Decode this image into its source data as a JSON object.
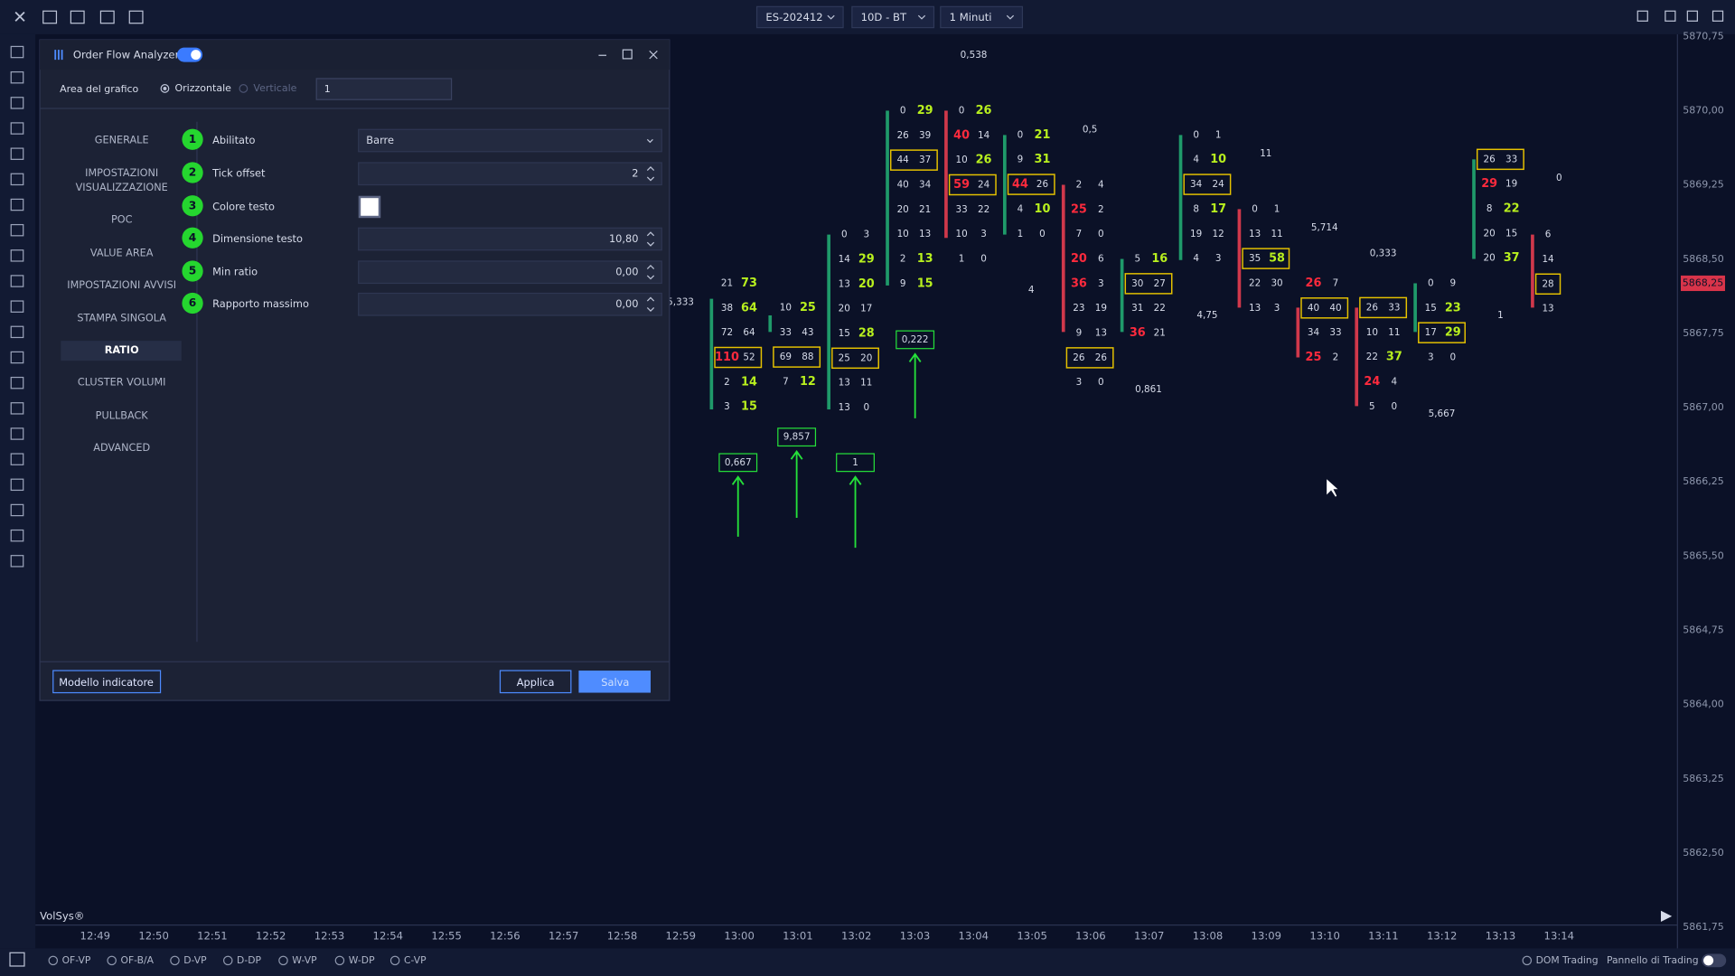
{
  "toolbar": {
    "symbol": "ES-202412",
    "range": "10D - BT",
    "timeframe": "1 Minuti"
  },
  "dialog": {
    "title": "Order Flow Analyzer",
    "area_label": "Area del grafico",
    "orientation": [
      "Orizzontale",
      "Verticale"
    ],
    "area_value": "1",
    "menu": [
      "GENERALE",
      [
        "IMPOSTAZIONI",
        "VISUALIZZAZIONE"
      ],
      "POC",
      "VALUE AREA",
      "IMPOSTAZIONI AVVISI",
      "STAMPA SINGOLA",
      "RATIO",
      "CLUSTER VOLUMI",
      "PULLBACK",
      "ADVANCED"
    ],
    "settings": [
      {
        "step": "1",
        "label": "Abilitato",
        "value": "Barre"
      },
      {
        "step": "2",
        "label": "Tick offset",
        "value": "2"
      },
      {
        "step": "3",
        "label": "Colore testo"
      },
      {
        "step": "4",
        "label": "Dimensione testo",
        "value": "10,80"
      },
      {
        "step": "5",
        "label": "Min ratio",
        "value": "0,00"
      },
      {
        "step": "6",
        "label": "Rapporto massimo",
        "value": "0,00"
      }
    ],
    "buttons": {
      "template": "Modello indicatore",
      "apply": "Applica",
      "save": "Salva"
    }
  },
  "chart": {
    "brand": "VolSys®",
    "price_axis": [
      "5870,75",
      "5870,00",
      "5869,25",
      "5868,50",
      "5867,75",
      "5867,00",
      "5866,25",
      "5865,50",
      "5864,75",
      "5864,00",
      "5863,25",
      "5862,50",
      "5861,75"
    ],
    "current_price": "5868,25",
    "times": [
      "12:49",
      "12:50",
      "12:51",
      "12:52",
      "12:53",
      "12:54",
      "12:55",
      "12:56",
      "12:57",
      "12:58",
      "12:59",
      "13:00",
      "13:01",
      "13:02",
      "13:03",
      "13:04",
      "13:05",
      "13:06",
      "13:07",
      "13:08",
      "13:09",
      "13:10",
      "13:11",
      "13:12",
      "13:13",
      "13:14"
    ],
    "footprint": [
      [
        [
          "21",
          "73"
        ],
        [
          "38",
          "64"
        ],
        [
          "72",
          "64"
        ],
        [
          "110",
          "52"
        ],
        [
          "2",
          "14"
        ],
        [
          "3",
          "15"
        ]
      ],
      [
        [
          "10",
          "25"
        ],
        [
          "33",
          "43"
        ],
        [
          "69",
          "88"
        ],
        [
          "7",
          "12"
        ]
      ],
      [
        [
          "0",
          "3"
        ],
        [
          "14",
          "29"
        ],
        [
          "13",
          "20"
        ],
        [
          "20",
          "17"
        ],
        [
          "15",
          "28"
        ],
        [
          "25",
          "20"
        ],
        [
          "13",
          "11"
        ],
        [
          "13",
          "0"
        ]
      ],
      [
        [
          "0",
          "29"
        ],
        [
          "26",
          "39"
        ],
        [
          "44",
          "37"
        ],
        [
          "40",
          "34"
        ],
        [
          "20",
          "21"
        ],
        [
          "10",
          "13"
        ],
        [
          "2",
          "13"
        ],
        [
          "9",
          "15"
        ]
      ],
      [
        [
          "0",
          "26"
        ],
        [
          "40",
          "14"
        ],
        [
          "10",
          "26"
        ],
        [
          "59",
          "24"
        ],
        [
          "33",
          "22"
        ],
        [
          "10",
          "3"
        ],
        [
          "1",
          "0"
        ]
      ],
      [
        [
          "0",
          "21"
        ],
        [
          "9",
          "31"
        ],
        [
          "44",
          "26"
        ],
        [
          "4",
          "10"
        ],
        [
          "1",
          "0"
        ]
      ],
      [
        [
          "2",
          "4"
        ],
        [
          "25",
          "2"
        ],
        [
          "7",
          "0"
        ],
        [
          "20",
          "6"
        ],
        [
          "36",
          "3"
        ],
        [
          "23",
          "19"
        ],
        [
          "9",
          "13"
        ],
        [
          "26",
          "26"
        ],
        [
          "3",
          "0"
        ]
      ],
      [
        [
          "5",
          "16"
        ],
        [
          "30",
          "27"
        ],
        [
          "31",
          "22"
        ],
        [
          "36",
          "21"
        ]
      ],
      [
        [
          "0",
          "1"
        ],
        [
          "4",
          "10"
        ],
        [
          "34",
          "24"
        ],
        [
          "8",
          "17"
        ],
        [
          "19",
          "12"
        ],
        [
          "4",
          "3"
        ]
      ],
      [
        [
          "0",
          "1"
        ],
        [
          "13",
          "11"
        ],
        [
          "35",
          "58"
        ],
        [
          "22",
          "30"
        ],
        [
          "13",
          "3"
        ]
      ],
      [
        [
          "26",
          "7"
        ],
        [
          "40",
          "40"
        ],
        [
          "34",
          "33"
        ],
        [
          "25",
          "2"
        ]
      ],
      [
        [
          "26",
          "33"
        ],
        [
          "10",
          "11"
        ],
        [
          "22",
          "37"
        ],
        [
          "24",
          "4"
        ],
        [
          "5",
          "0"
        ]
      ],
      [
        [
          "0",
          "9"
        ],
        [
          "15",
          "23"
        ],
        [
          "17",
          "29"
        ],
        [
          "3",
          "0"
        ]
      ],
      [
        [
          "26",
          "33"
        ],
        [
          "29",
          "19"
        ],
        [
          "8",
          "22"
        ],
        [
          "20",
          "15"
        ],
        [
          "20",
          "37"
        ]
      ],
      [
        [
          "6"
        ],
        [
          "14"
        ],
        [
          "28"
        ],
        [
          "13"
        ]
      ]
    ],
    "ratios": [
      "0,667",
      "9,857",
      "1",
      "0,222"
    ],
    "labels": [
      "0,538",
      "0,5",
      "4",
      "11",
      "5,714",
      "0,333",
      "4,75",
      "0,861",
      "5,667",
      "1",
      "0",
      "5,333"
    ]
  },
  "bottom": {
    "options": [
      "OF-VP",
      "OF-B/A",
      "D-VP",
      "D-DP",
      "W-VP",
      "W-DP",
      "C-VP"
    ],
    "dom": "DOM Trading",
    "panel": "Pannello di Trading"
  }
}
